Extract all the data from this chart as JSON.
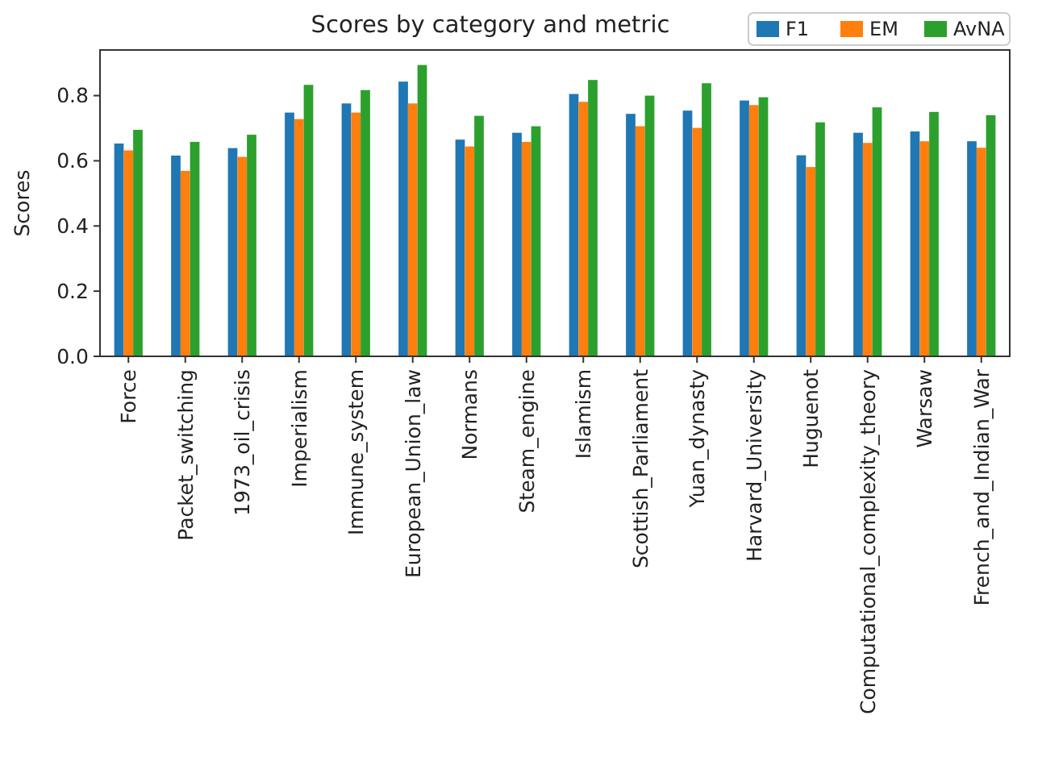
{
  "chart_data": {
    "type": "bar",
    "title": "Scores by category and metric",
    "ylabel": "Scores",
    "categories": [
      "Force",
      "Packet_switching",
      "1973_oil_crisis",
      "Imperialism",
      "Immune_system",
      "European_Union_law",
      "Normans",
      "Steam_engine",
      "Islamism",
      "Scottish_Parliament",
      "Yuan_dynasty",
      "Harvard_University",
      "Huguenot",
      "Computational_complexity_theory",
      "Warsaw",
      "French_and_Indian_War"
    ],
    "series": [
      {
        "name": "F1",
        "color": "#1f77b4",
        "values": [
          0.653,
          0.616,
          0.639,
          0.748,
          0.776,
          0.843,
          0.665,
          0.686,
          0.805,
          0.744,
          0.754,
          0.785,
          0.617,
          0.686,
          0.69,
          0.66
        ]
      },
      {
        "name": "EM",
        "color": "#ff7f0e",
        "values": [
          0.632,
          0.569,
          0.612,
          0.728,
          0.748,
          0.776,
          0.644,
          0.658,
          0.781,
          0.706,
          0.701,
          0.771,
          0.581,
          0.655,
          0.66,
          0.64
        ]
      },
      {
        "name": "AvNA",
        "color": "#2ca02c",
        "values": [
          0.695,
          0.658,
          0.68,
          0.833,
          0.817,
          0.894,
          0.738,
          0.706,
          0.848,
          0.8,
          0.838,
          0.795,
          0.718,
          0.764,
          0.75,
          0.74
        ]
      }
    ],
    "ylim": [
      0,
      0.94
    ],
    "yticks": [
      {
        "value": 0,
        "label": "0.0"
      },
      0.2,
      0.4,
      0.6,
      0.8
    ],
    "legend": "top right"
  }
}
